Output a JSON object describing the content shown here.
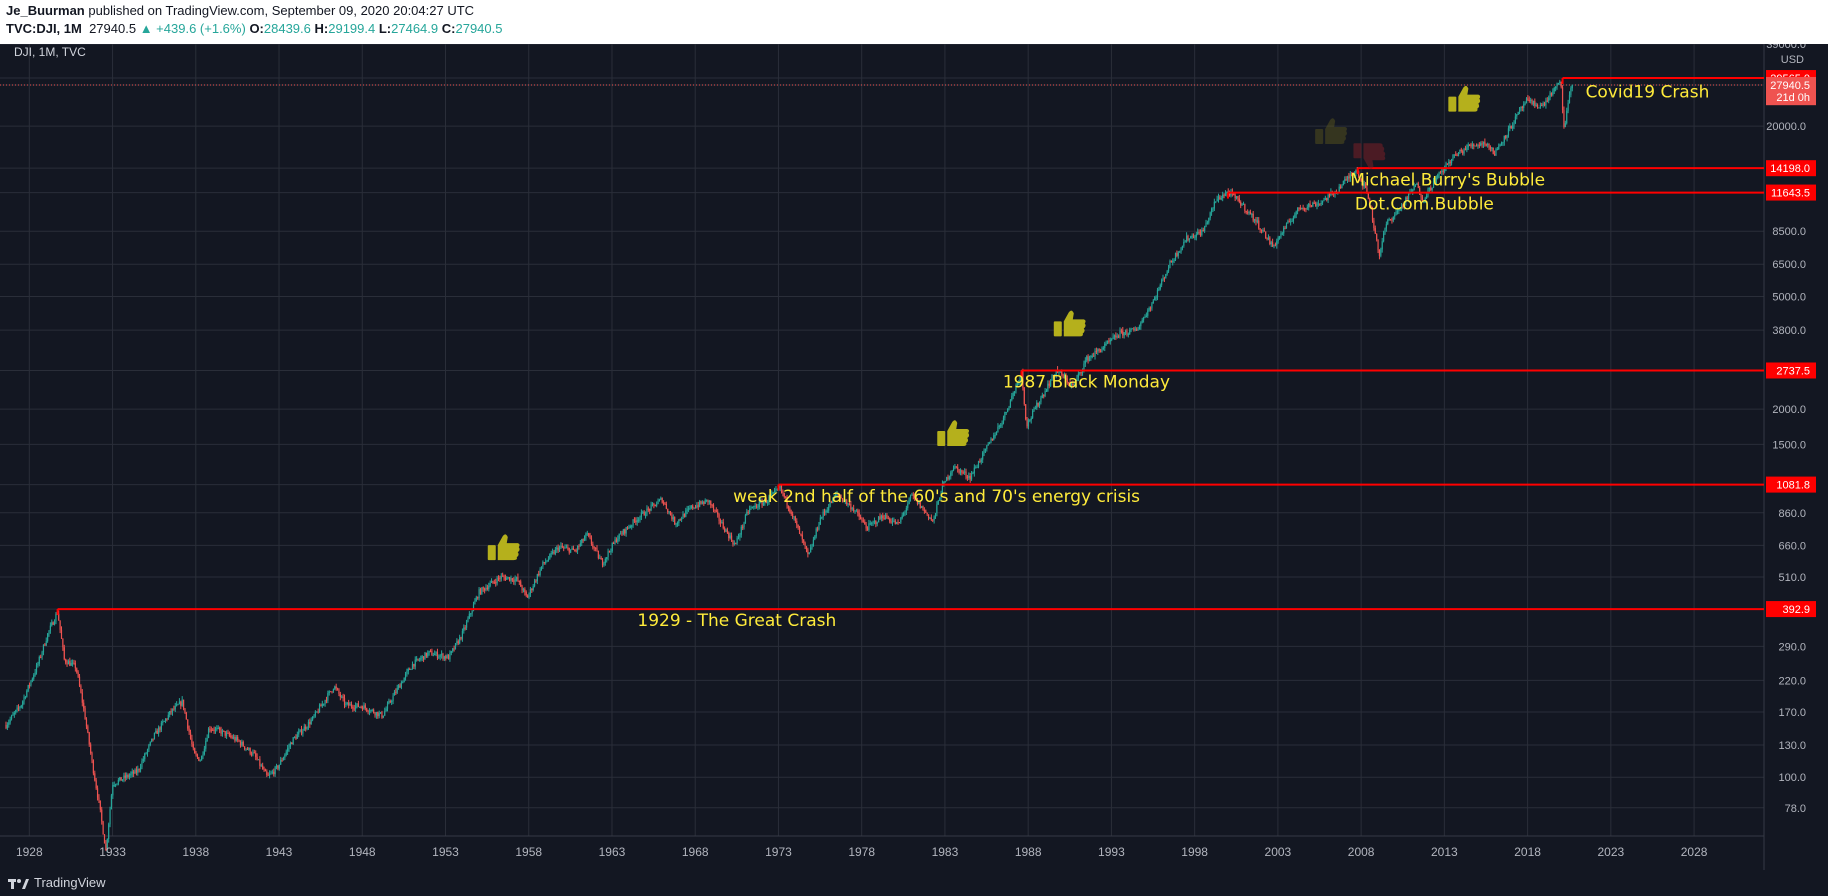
{
  "header": {
    "author": "Je_Buurman",
    "published_text": "published on TradingView.com, September 09, 2020 20:04:27 UTC",
    "symbol_line": "TVC:DJI, 1M",
    "last": "27940.5",
    "change": "▲ +439.6 (+1.6%)",
    "o_label": "O:",
    "o_value": "28439.6",
    "h_label": "H:",
    "h_value": "29199.4",
    "l_label": "L:",
    "l_value": "27464.9",
    "c_label": "C:",
    "c_value": "27940.5"
  },
  "footer": {
    "brand": "TradingView"
  },
  "colors": {
    "background": "#131722",
    "grid": "#2a2e39",
    "up": "#26a69a",
    "down": "#ef5350",
    "level_line": "#ff0000",
    "annotation_text": "#ffeb3b",
    "axis_text": "#b2b5be",
    "thumb_up": "#b5b01c",
    "thumb_up_faded": "#5f5a1c",
    "thumb_down_faded": "#7a1f26"
  },
  "chart_data": {
    "type": "candlestick",
    "symbol_label": "DJI, 1M, TVC",
    "currency": "USD",
    "scale": "log",
    "grid": true,
    "xlim": [
      1926.6,
      2032.2
    ],
    "ylim": [
      62,
      39000
    ],
    "x_ticks": [
      "1928",
      "1933",
      "1938",
      "1943",
      "1948",
      "1953",
      "1958",
      "1963",
      "1968",
      "1973",
      "1978",
      "1983",
      "1988",
      "1993",
      "1998",
      "2003",
      "2008",
      "2013",
      "2018",
      "2023",
      "2028"
    ],
    "y_ticks": [
      78.0,
      100.0,
      130.0,
      170.0,
      220.0,
      290.0,
      392.9,
      510.0,
      660.0,
      860.0,
      1081.8,
      1500.0,
      2000.0,
      2737.5,
      3800.0,
      5000.0,
      6500.0,
      8500.0,
      11643.5,
      14198.0,
      20000.0,
      27940.5,
      29565.0,
      39000.0
    ],
    "y_tick_labels": [
      "78.0",
      "100.0",
      "130.0",
      "170.0",
      "220.0",
      "290.0",
      "",
      "510.0",
      "660.0",
      "860.0",
      "",
      "1500.0",
      "2000.0",
      "",
      "3800.0",
      "5000.0",
      "6500.0",
      "8500.0",
      "",
      "",
      "20000.0",
      "",
      "",
      "39000.0"
    ],
    "price_path": [
      [
        1926.6,
        153
      ],
      [
        1927.5,
        180
      ],
      [
        1928.5,
        250
      ],
      [
        1929.1,
        320
      ],
      [
        1929.7,
        385
      ],
      [
        1930.1,
        260
      ],
      [
        1930.8,
        245
      ],
      [
        1931.3,
        170
      ],
      [
        1931.8,
        110
      ],
      [
        1932.2,
        80
      ],
      [
        1932.6,
        55
      ],
      [
        1933.0,
        95
      ],
      [
        1933.5,
        98
      ],
      [
        1934.5,
        105
      ],
      [
        1935.5,
        140
      ],
      [
        1936.5,
        170
      ],
      [
        1937.2,
        185
      ],
      [
        1937.9,
        120
      ],
      [
        1938.3,
        115
      ],
      [
        1938.8,
        150
      ],
      [
        1939.5,
        145
      ],
      [
        1940.5,
        135
      ],
      [
        1941.5,
        120
      ],
      [
        1942.3,
        100
      ],
      [
        1942.9,
        108
      ],
      [
        1943.8,
        135
      ],
      [
        1945.0,
        160
      ],
      [
        1946.3,
        210
      ],
      [
        1947.0,
        180
      ],
      [
        1948.0,
        178
      ],
      [
        1949.2,
        165
      ],
      [
        1950.0,
        200
      ],
      [
        1951.0,
        250
      ],
      [
        1952.0,
        275
      ],
      [
        1953.2,
        265
      ],
      [
        1954.0,
        320
      ],
      [
        1955.0,
        450
      ],
      [
        1956.3,
        510
      ],
      [
        1957.3,
        500
      ],
      [
        1957.9,
        430
      ],
      [
        1958.8,
        560
      ],
      [
        1959.8,
        650
      ],
      [
        1960.8,
        630
      ],
      [
        1961.5,
        720
      ],
      [
        1962.4,
        570
      ],
      [
        1963.3,
        700
      ],
      [
        1964.5,
        820
      ],
      [
        1966.0,
        960
      ],
      [
        1966.8,
        790
      ],
      [
        1967.8,
        900
      ],
      [
        1968.8,
        950
      ],
      [
        1969.5,
        800
      ],
      [
        1970.4,
        660
      ],
      [
        1971.2,
        880
      ],
      [
        1972.3,
        950
      ],
      [
        1973.1,
        1050
      ],
      [
        1973.8,
        860
      ],
      [
        1974.8,
        600
      ],
      [
        1975.5,
        820
      ],
      [
        1976.5,
        1000
      ],
      [
        1977.5,
        890
      ],
      [
        1978.3,
        760
      ],
      [
        1979.3,
        840
      ],
      [
        1980.2,
        780
      ],
      [
        1981.0,
        990
      ],
      [
        1982.3,
        800
      ],
      [
        1982.8,
        1050
      ],
      [
        1983.5,
        1250
      ],
      [
        1984.5,
        1150
      ],
      [
        1985.5,
        1450
      ],
      [
        1986.5,
        1850
      ],
      [
        1987.6,
        2700
      ],
      [
        1987.9,
        1750
      ],
      [
        1988.6,
        2100
      ],
      [
        1989.7,
        2750
      ],
      [
        1990.7,
        2400
      ],
      [
        1991.5,
        3000
      ],
      [
        1992.5,
        3300
      ],
      [
        1993.5,
        3700
      ],
      [
        1994.5,
        3800
      ],
      [
        1995.5,
        4800
      ],
      [
        1996.5,
        6500
      ],
      [
        1997.5,
        8000
      ],
      [
        1998.5,
        8500
      ],
      [
        1999.3,
        11000
      ],
      [
        2000.0,
        11700
      ],
      [
        2000.7,
        10800
      ],
      [
        2001.7,
        9200
      ],
      [
        2002.7,
        7500
      ],
      [
        2003.3,
        8500
      ],
      [
        2004.3,
        10300
      ],
      [
        2005.5,
        10700
      ],
      [
        2006.5,
        11800
      ],
      [
        2007.7,
        14100
      ],
      [
        2008.4,
        11500
      ],
      [
        2009.1,
        7000
      ],
      [
        2009.5,
        9000
      ],
      [
        2010.5,
        10500
      ],
      [
        2011.3,
        12500
      ],
      [
        2011.7,
        11000
      ],
      [
        2012.5,
        13000
      ],
      [
        2013.5,
        15500
      ],
      [
        2014.5,
        17000
      ],
      [
        2015.5,
        17500
      ],
      [
        2016.0,
        16000
      ],
      [
        2016.9,
        19500
      ],
      [
        2017.9,
        24500
      ],
      [
        2018.3,
        24000
      ],
      [
        2018.9,
        23500
      ],
      [
        2019.5,
        26500
      ],
      [
        2020.0,
        28500
      ],
      [
        2020.2,
        19000
      ],
      [
        2020.5,
        26000
      ],
      [
        2020.7,
        28400
      ]
    ],
    "levels": [
      {
        "from": 1929.7,
        "value": 392.9,
        "label": "392.9"
      },
      {
        "from": 1973.0,
        "value": 1081.8,
        "label": "1081.8"
      },
      {
        "from": 1987.6,
        "value": 2737.5,
        "label": "2737.5"
      },
      {
        "from": 2000.0,
        "value": 11643.5,
        "label": "11643.5"
      },
      {
        "from": 2007.8,
        "value": 14198.0,
        "label": "14198.0"
      },
      {
        "from": 2020.1,
        "value": 29565.0,
        "label": "29565.0"
      }
    ],
    "last_price": {
      "value": 27940.5,
      "label": "27940.5"
    },
    "countdown": {
      "value": 25300,
      "label": "21d 0h"
    },
    "annotations": [
      {
        "text": "1929 - The Great Crash",
        "x": 1970.5,
        "y": 342
      },
      {
        "text": "weak 2nd half of the 60's and 70's energy crisis",
        "x": 1982.5,
        "y": 940
      },
      {
        "text": "1987 Black Monday",
        "x": 1991.5,
        "y": 2380
      },
      {
        "text": "Dot.Com.Bubble",
        "x": 2011.8,
        "y": 10150
      },
      {
        "text": "Michael Burry's Bubble",
        "x": 2013.2,
        "y": 12350
      },
      {
        "text": "Covid19 Crash",
        "x": 2025.2,
        "y": 25200
      }
    ],
    "thumbs": [
      {
        "kind": "up",
        "x": 1956.5,
        "y": 640,
        "opacity": 1
      },
      {
        "kind": "up",
        "x": 1983.5,
        "y": 1620,
        "opacity": 1
      },
      {
        "kind": "up",
        "x": 1990.5,
        "y": 3950,
        "opacity": 1
      },
      {
        "kind": "up",
        "x": 2006.2,
        "y": 18900,
        "opacity": 0.45
      },
      {
        "kind": "down",
        "x": 2008.5,
        "y": 15900,
        "opacity": 0.55
      },
      {
        "kind": "up",
        "x": 2014.2,
        "y": 24600,
        "opacity": 1
      }
    ]
  }
}
